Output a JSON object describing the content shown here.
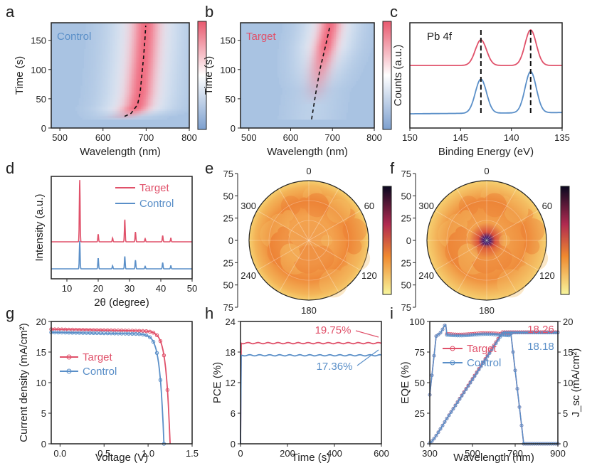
{
  "colors": {
    "target": "#e0516a",
    "control": "#5a8fc8",
    "heat_low": "#a9c3e2",
    "heat_high": "#f07d90",
    "polar_high": "#1a0a3c",
    "polar_mid": "#f08030",
    "polar_low": "#f4f09a"
  },
  "chart_data": [
    {
      "panel": "a",
      "type": "heatmap",
      "annotation": "Control",
      "xlabel": "Wavelength (nm)",
      "ylabel": "Time (s)",
      "xlim": [
        480,
        800
      ],
      "ylim": [
        0,
        180
      ],
      "xticks": [
        "500",
        "600",
        "700",
        "800"
      ],
      "yticks": [
        "0",
        "50",
        "100",
        "150"
      ],
      "colorbar": {
        "position": "right"
      },
      "peak_trace": {
        "x": [
          650,
          665,
          680,
          686,
          690,
          694,
          697,
          699
        ],
        "y": [
          20,
          25,
          40,
          60,
          90,
          120,
          150,
          175
        ]
      }
    },
    {
      "panel": "b",
      "type": "heatmap",
      "annotation": "Target",
      "xlabel": "Wavelength (nm)",
      "ylabel": "Time (s)",
      "xlim": [
        480,
        800
      ],
      "ylim": [
        0,
        180
      ],
      "xticks": [
        "500",
        "600",
        "700",
        "800"
      ],
      "yticks": [
        "0",
        "50",
        "100",
        "150"
      ],
      "colorbar": {
        "position": "right"
      },
      "peak_trace": {
        "x": [
          650,
          660,
          670,
          680,
          688,
          694
        ],
        "y": [
          15,
          60,
          100,
          130,
          155,
          175
        ]
      }
    },
    {
      "panel": "c",
      "type": "line",
      "annotation": "Pb 4f",
      "xlabel": "Binding Energy (eV)",
      "ylabel": "Counts (a.u.)",
      "xlim": [
        150,
        135
      ],
      "xticks": [
        "150",
        "145",
        "140",
        "135"
      ],
      "peaks_eV": [
        143.0,
        138.1
      ],
      "series": [
        {
          "color_key": "target",
          "offset": 1.0,
          "peaks": [
            143.0,
            138.1
          ]
        },
        {
          "color_key": "control",
          "offset": 0.0,
          "peaks": [
            143.0,
            138.1
          ]
        }
      ]
    },
    {
      "panel": "d",
      "type": "line",
      "xlabel": "2θ (degree)",
      "ylabel": "Intensity (a.u.)",
      "xlim": [
        5,
        50
      ],
      "xticks": [
        "10",
        "20",
        "30",
        "40",
        "50"
      ],
      "legend": "top-right",
      "series": [
        {
          "name": "Target",
          "color_key": "target",
          "peaks": [
            [
              14.1,
              1.0
            ],
            [
              20.0,
              0.12
            ],
            [
              24.6,
              0.06
            ],
            [
              28.5,
              0.36
            ],
            [
              31.9,
              0.16
            ],
            [
              35.0,
              0.05
            ],
            [
              40.6,
              0.1
            ],
            [
              43.2,
              0.06
            ]
          ]
        },
        {
          "name": "Control",
          "color_key": "control",
          "peaks": [
            [
              14.1,
              0.45
            ],
            [
              20.0,
              0.17
            ],
            [
              24.6,
              0.05
            ],
            [
              28.5,
              0.2
            ],
            [
              31.9,
              0.14
            ],
            [
              35.0,
              0.04
            ],
            [
              40.6,
              0.1
            ],
            [
              43.2,
              0.05
            ]
          ]
        }
      ]
    },
    {
      "panel": "e",
      "type": "heatmap",
      "subtype": "polar",
      "radial_ticks": [
        "75",
        "50",
        "25",
        "0",
        "25",
        "50",
        "75"
      ],
      "angle_ticks": [
        "0",
        "60",
        "120",
        "180",
        "240",
        "300"
      ],
      "center_intensity": 0.45
    },
    {
      "panel": "f",
      "type": "heatmap",
      "subtype": "polar",
      "radial_ticks": [
        "75",
        "50",
        "25",
        "0",
        "25",
        "50",
        "75"
      ],
      "angle_ticks": [
        "0",
        "60",
        "120",
        "180",
        "240",
        "300"
      ],
      "center_intensity": 1.0
    },
    {
      "panel": "g",
      "type": "line",
      "xlabel": "Voltage (V)",
      "ylabel": "Current density (mA/cm²)",
      "xlim": [
        -0.1,
        1.5
      ],
      "ylim": [
        0,
        20
      ],
      "xticks": [
        "0.0",
        "0.5",
        "1.0",
        "1.5"
      ],
      "yticks": [
        "0",
        "5",
        "10",
        "15",
        "20"
      ],
      "legend": "center",
      "series": [
        {
          "name": "Target",
          "color_key": "target",
          "jsc": 18.7,
          "voc": 1.25
        },
        {
          "name": "Control",
          "color_key": "control",
          "jsc": 18.2,
          "voc": 1.18
        }
      ]
    },
    {
      "panel": "h",
      "type": "line",
      "xlabel": "Time (s)",
      "ylabel": "PCE (%)",
      "xlim": [
        0,
        600
      ],
      "ylim": [
        0,
        24
      ],
      "xticks": [
        "0",
        "200",
        "400",
        "600"
      ],
      "yticks": [
        "0",
        "6",
        "12",
        "18",
        "24"
      ],
      "series": [
        {
          "name": "19.75%",
          "color_key": "target",
          "value": 19.75
        },
        {
          "name": "17.36%",
          "color_key": "control",
          "value": 17.36
        }
      ],
      "annotations": [
        "19.75%",
        "17.36%"
      ]
    },
    {
      "panel": "i",
      "type": "line",
      "xlabel": "Wavelength (nm)",
      "ylabel": "EQE (%)",
      "ylabel_right": "J_sc (mA/cm²)",
      "xlim": [
        300,
        900
      ],
      "ylim": [
        0,
        100
      ],
      "ylim_right": [
        0,
        20
      ],
      "xticks": [
        "300",
        "500",
        "700",
        "900"
      ],
      "yticks": [
        "0",
        "25",
        "50",
        "75",
        "100"
      ],
      "yticks_right": [
        "0",
        "5",
        "10",
        "15",
        "20"
      ],
      "legend": "top-left",
      "series": [
        {
          "name": "Target",
          "color_key": "target",
          "integrated_jsc": 18.26
        },
        {
          "name": "Control",
          "color_key": "control",
          "integrated_jsc": 18.18
        }
      ],
      "annotations": [
        "18.26",
        "18.18"
      ]
    }
  ]
}
